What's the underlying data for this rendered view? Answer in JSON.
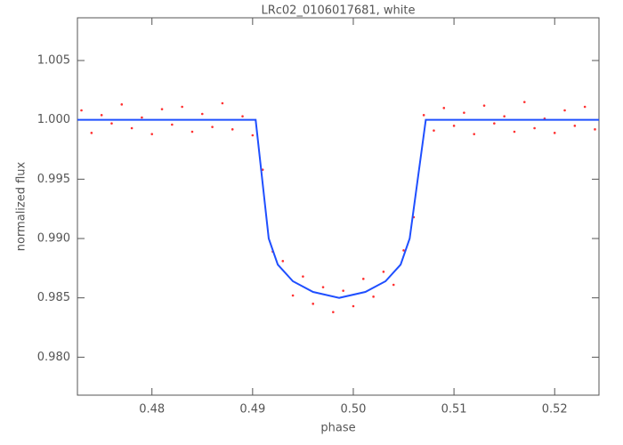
{
  "chart_data": {
    "type": "scatter",
    "title": "LRc02_0106017681, white",
    "x_label": "phase",
    "y_label": "normalized flux",
    "xlim": [
      0.4726,
      0.5244
    ],
    "ylim": [
      0.9768,
      1.0086
    ],
    "xticks": [
      0.48,
      0.49,
      {
        "value": 0.5,
        "label": "0.50"
      },
      0.51,
      0.52
    ],
    "yticks": [
      {
        "value": 0.98,
        "label": "0.980"
      },
      0.985,
      {
        "value": 0.99,
        "label": "0.990"
      },
      0.995,
      {
        "value": 1,
        "label": "1.000"
      },
      1.005
    ],
    "series": [
      {
        "style": "points",
        "color": "#ff3030",
        "x": [
          0.473,
          0.474,
          0.475,
          0.476,
          0.477,
          0.478,
          0.479,
          0.48,
          0.481,
          0.482,
          0.483,
          0.484,
          0.485,
          0.486,
          0.487,
          0.488,
          0.489,
          0.49,
          0.491,
          0.492,
          0.493,
          0.494,
          0.495,
          0.496,
          0.497,
          0.498,
          0.499,
          0.5,
          0.501,
          0.502,
          0.503,
          0.504,
          0.505,
          0.506,
          0.507,
          0.508,
          0.509,
          0.51,
          0.511,
          0.512,
          0.513,
          0.514,
          0.515,
          0.516,
          0.517,
          0.518,
          0.519,
          0.52,
          0.521,
          0.522,
          0.523,
          0.524
        ],
        "values": [
          1.0008,
          0.9989,
          1.0004,
          0.9997,
          1.0013,
          0.9993,
          1.0002,
          0.9988,
          1.0009,
          0.9996,
          1.0011,
          0.999,
          1.0005,
          0.9994,
          1.0014,
          0.9992,
          1.0003,
          0.9987,
          0.9958,
          0.9889,
          0.9881,
          0.9852,
          0.9868,
          0.9845,
          0.9859,
          0.9838,
          0.9856,
          0.9843,
          0.9866,
          0.9851,
          0.9872,
          0.9861,
          0.989,
          0.9918,
          1.0004,
          0.9991,
          1.001,
          0.9995,
          1.0006,
          0.9988,
          1.0012,
          0.9997,
          1.0003,
          0.999,
          1.0015,
          0.9993,
          1.0001,
          0.9989,
          1.0008,
          0.9995,
          1.0011,
          0.9992
        ]
      },
      {
        "style": "line",
        "color": "#1f4fff",
        "x": [
          0.4726,
          0.4903,
          0.4916,
          0.4925,
          0.494,
          0.496,
          0.4986,
          0.5012,
          0.5032,
          0.5047,
          0.5056,
          0.5072,
          0.5244
        ],
        "values": [
          1,
          1,
          0.99,
          0.9878,
          0.9864,
          0.9855,
          0.985,
          0.9855,
          0.9864,
          0.9878,
          0.99,
          1,
          1
        ]
      }
    ]
  }
}
